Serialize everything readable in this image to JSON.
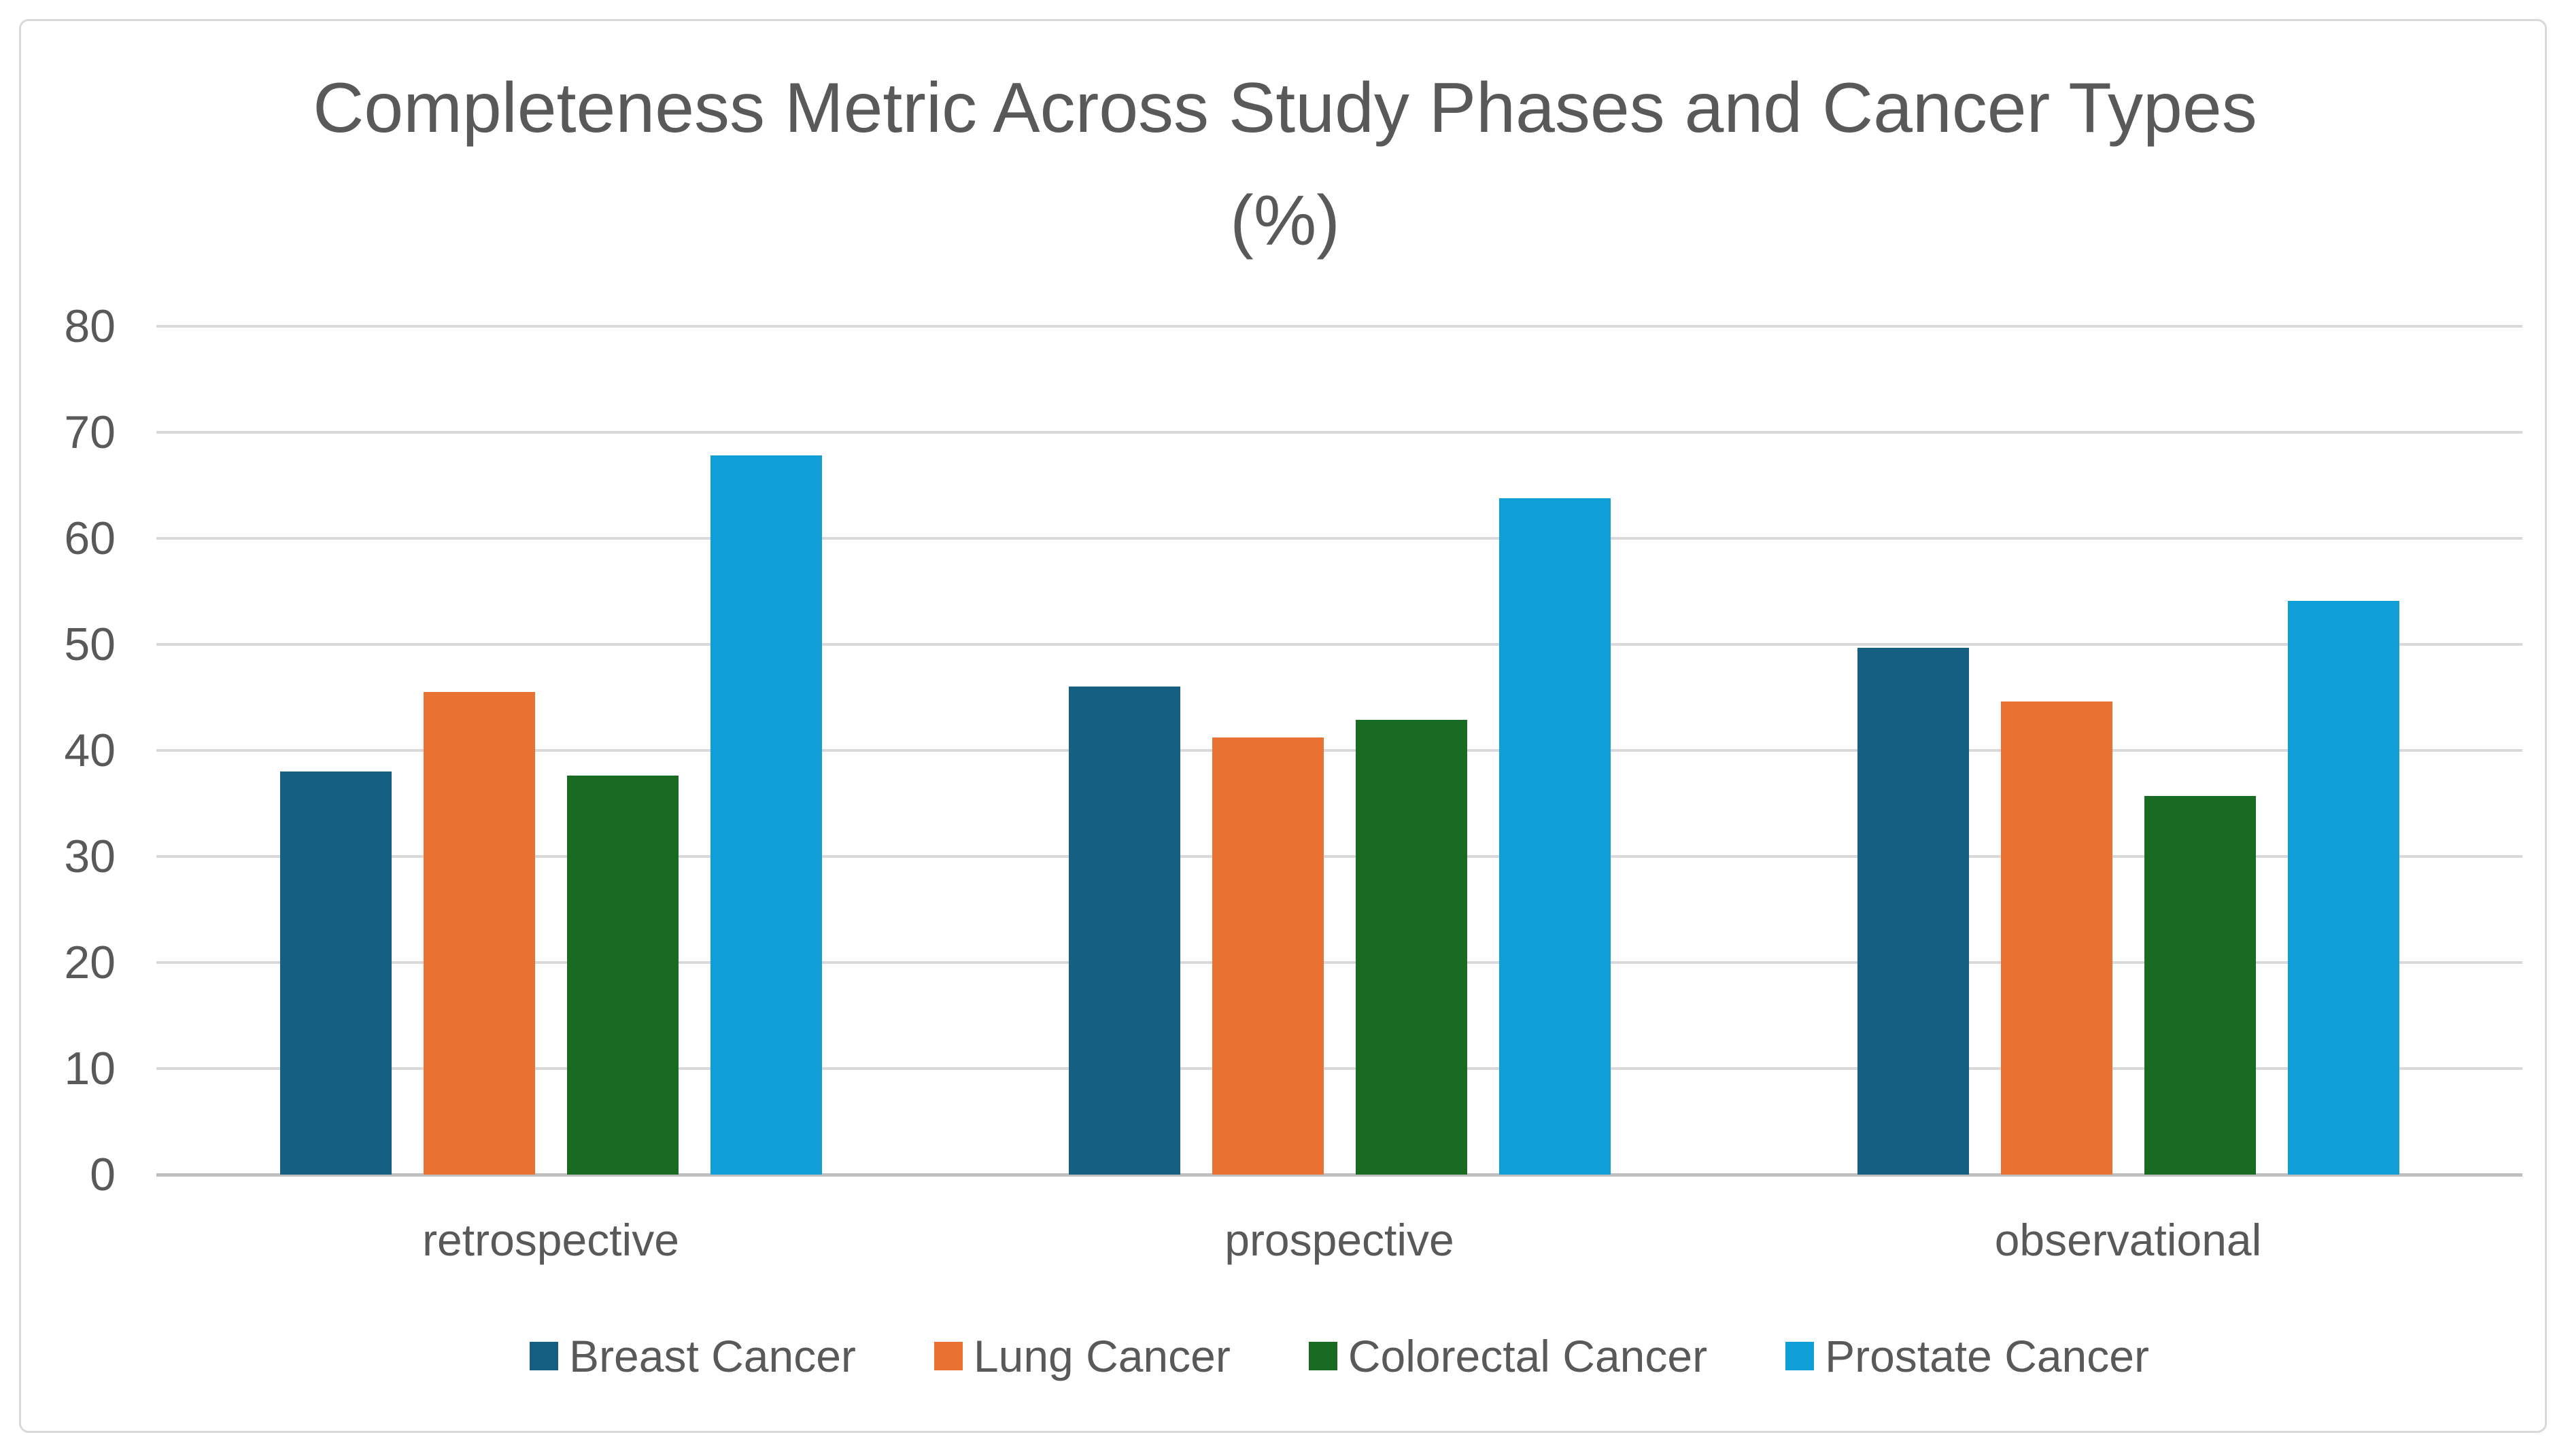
{
  "chart_data": {
    "type": "bar",
    "title": "Completeness Metric Across Study Phases and Cancer Types (%)",
    "title_lines": [
      "Completeness Metric Across Study Phases and Cancer Types",
      "(%)"
    ],
    "categories": [
      "retrospective",
      "prospective",
      "observational"
    ],
    "series": [
      {
        "name": "Breast Cancer",
        "color": "#156082",
        "values": [
          38.0,
          46.0,
          49.7
        ]
      },
      {
        "name": "Lung Cancer",
        "color": "#E97132",
        "values": [
          45.5,
          41.2,
          44.6
        ]
      },
      {
        "name": "Colorectal Cancer",
        "color": "#196B24",
        "values": [
          37.6,
          42.9,
          35.7
        ]
      },
      {
        "name": "Prostate Cancer",
        "color": "#0F9ED5",
        "values": [
          67.8,
          63.8,
          54.1
        ]
      }
    ],
    "ylim": [
      0,
      80
    ],
    "yticks": [
      0,
      10,
      20,
      30,
      40,
      50,
      60,
      70,
      80
    ],
    "xlabel": "",
    "ylabel": "",
    "grid": "horizontal",
    "legend_position": "bottom",
    "colors": {
      "text": "#595959",
      "gridline": "#D9D9D9",
      "axis_line": "#BFBFBF",
      "background": "#FFFFFF",
      "border": "#D9D9D9"
    }
  }
}
